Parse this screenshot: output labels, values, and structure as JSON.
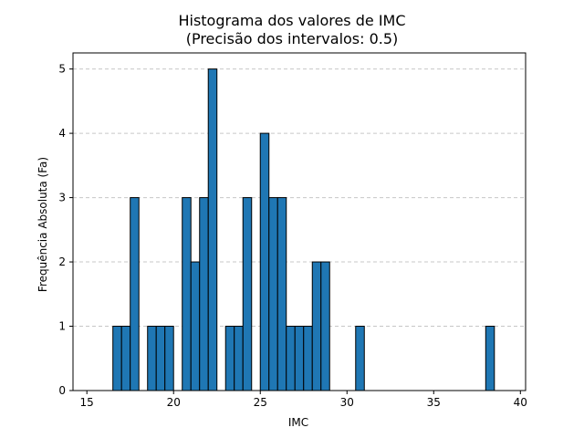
{
  "chart_data": {
    "type": "bar",
    "title_line1": "Histograma dos valores de IMC",
    "title_line2": "(Precisão dos intervalos: 0.5)",
    "xlabel": "IMC",
    "ylabel": "Frequência Absoluta (Fa)",
    "xlim": [
      14.2,
      40.3
    ],
    "ylim": [
      0,
      5.25
    ],
    "x_ticks": [
      15,
      20,
      25,
      30,
      35,
      40
    ],
    "y_ticks": [
      0,
      1,
      2,
      3,
      4,
      5
    ],
    "grid": "y-dashed",
    "bin_width": 0.5,
    "bar_color": "#1f77b4",
    "edge_color": "#000000",
    "bins": [
      {
        "start": 16.5,
        "value": 1
      },
      {
        "start": 17.0,
        "value": 1
      },
      {
        "start": 17.5,
        "value": 3
      },
      {
        "start": 18.5,
        "value": 1
      },
      {
        "start": 19.0,
        "value": 1
      },
      {
        "start": 19.5,
        "value": 1
      },
      {
        "start": 20.5,
        "value": 3
      },
      {
        "start": 21.0,
        "value": 2
      },
      {
        "start": 21.5,
        "value": 3
      },
      {
        "start": 22.0,
        "value": 5
      },
      {
        "start": 23.0,
        "value": 1
      },
      {
        "start": 23.5,
        "value": 1
      },
      {
        "start": 24.0,
        "value": 3
      },
      {
        "start": 25.0,
        "value": 4
      },
      {
        "start": 25.5,
        "value": 3
      },
      {
        "start": 26.0,
        "value": 3
      },
      {
        "start": 26.5,
        "value": 1
      },
      {
        "start": 27.0,
        "value": 1
      },
      {
        "start": 27.5,
        "value": 1
      },
      {
        "start": 28.0,
        "value": 2
      },
      {
        "start": 28.5,
        "value": 2
      },
      {
        "start": 30.5,
        "value": 1
      },
      {
        "start": 38.0,
        "value": 1
      }
    ]
  }
}
